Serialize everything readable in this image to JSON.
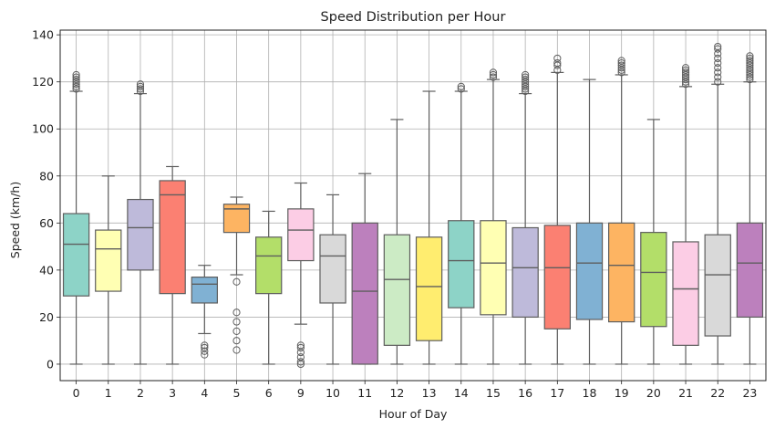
{
  "chart_data": {
    "type": "box",
    "title": "Speed Distribution per Hour",
    "xlabel": "Hour of Day",
    "ylabel": "Speed (km/h)",
    "ylim": [
      -7,
      142
    ],
    "yticks": [
      0,
      20,
      40,
      60,
      80,
      100,
      120,
      140
    ],
    "grid": true,
    "categories": [
      "0",
      "1",
      "2",
      "3",
      "4",
      "5",
      "6",
      "9",
      "10",
      "11",
      "12",
      "13",
      "14",
      "15",
      "16",
      "17",
      "18",
      "19",
      "20",
      "21",
      "22",
      "23"
    ],
    "boxes": [
      {
        "category": "0",
        "whisker_low": 0,
        "q1": 29,
        "median": 51,
        "q3": 64,
        "whisker_high": 116,
        "outliers": [
          117,
          118,
          119,
          120,
          121,
          122,
          123
        ],
        "color": "#8dd3c7"
      },
      {
        "category": "1",
        "whisker_low": 0,
        "q1": 31,
        "median": 49,
        "q3": 57,
        "whisker_high": 80,
        "outliers": [],
        "color": "#ffffb3"
      },
      {
        "category": "2",
        "whisker_low": 0,
        "q1": 40,
        "median": 58,
        "q3": 70,
        "whisker_high": 115,
        "outliers": [
          116,
          117,
          118,
          119
        ],
        "color": "#bebada"
      },
      {
        "category": "3",
        "whisker_low": 0,
        "q1": 30,
        "median": 72,
        "q3": 78,
        "whisker_high": 84,
        "outliers": [],
        "color": "#fb8072"
      },
      {
        "category": "4",
        "whisker_low": 13,
        "q1": 26,
        "median": 34,
        "q3": 37,
        "whisker_high": 42,
        "outliers": [
          4,
          5.5,
          7,
          8
        ],
        "color": "#80b1d3"
      },
      {
        "category": "5",
        "whisker_low": 38,
        "q1": 56,
        "median": 66,
        "q3": 68,
        "whisker_high": 71,
        "outliers": [
          6,
          10,
          14,
          18,
          22,
          35
        ],
        "color": "#fdb462"
      },
      {
        "category": "6",
        "whisker_low": 0,
        "q1": 30,
        "median": 46,
        "q3": 54,
        "whisker_high": 65,
        "outliers": [],
        "color": "#b3de69"
      },
      {
        "category": "9",
        "whisker_low": 17,
        "q1": 44,
        "median": 57,
        "q3": 66,
        "whisker_high": 77,
        "outliers": [
          0,
          1,
          3,
          5,
          7,
          8
        ],
        "color": "#fccde5"
      },
      {
        "category": "10",
        "whisker_low": 0,
        "q1": 26,
        "median": 46,
        "q3": 55,
        "whisker_high": 72,
        "outliers": [],
        "color": "#d9d9d9"
      },
      {
        "category": "11",
        "whisker_low": 0,
        "q1": 0,
        "median": 31,
        "q3": 60,
        "whisker_high": 81,
        "outliers": [],
        "color": "#bc80bd"
      },
      {
        "category": "12",
        "whisker_low": 0,
        "q1": 8,
        "median": 36,
        "q3": 55,
        "whisker_high": 104,
        "outliers": [],
        "color": "#ccebc5"
      },
      {
        "category": "13",
        "whisker_low": 0,
        "q1": 10,
        "median": 33,
        "q3": 54,
        "whisker_high": 116,
        "outliers": [],
        "color": "#ffed6f"
      },
      {
        "category": "14",
        "whisker_low": 0,
        "q1": 24,
        "median": 44,
        "q3": 61,
        "whisker_high": 116,
        "outliers": [
          117,
          118
        ],
        "color": "#8dd3c7"
      },
      {
        "category": "15",
        "whisker_low": 0,
        "q1": 21,
        "median": 43,
        "q3": 61,
        "whisker_high": 121,
        "outliers": [
          122,
          123,
          124
        ],
        "color": "#ffffb3"
      },
      {
        "category": "16",
        "whisker_low": 0,
        "q1": 20,
        "median": 41,
        "q3": 58,
        "whisker_high": 115,
        "outliers": [
          116,
          117,
          118,
          119,
          120,
          121,
          122,
          123
        ],
        "color": "#bebada"
      },
      {
        "category": "17",
        "whisker_low": 0,
        "q1": 15,
        "median": 41,
        "q3": 59,
        "whisker_high": 124,
        "outliers": [
          125,
          127,
          128,
          130
        ],
        "color": "#fb8072"
      },
      {
        "category": "18",
        "whisker_low": 0,
        "q1": 19,
        "median": 43,
        "q3": 60,
        "whisker_high": 121,
        "outliers": [],
        "color": "#80b1d3"
      },
      {
        "category": "19",
        "whisker_low": 0,
        "q1": 18,
        "median": 42,
        "q3": 60,
        "whisker_high": 123,
        "outliers": [
          124,
          125,
          126,
          127,
          128,
          129
        ],
        "color": "#fdb462"
      },
      {
        "category": "20",
        "whisker_low": 0,
        "q1": 16,
        "median": 39,
        "q3": 56,
        "whisker_high": 104,
        "outliers": [],
        "color": "#b3de69"
      },
      {
        "category": "21",
        "whisker_low": 0,
        "q1": 8,
        "median": 32,
        "q3": 52,
        "whisker_high": 118,
        "outliers": [
          119,
          120,
          121,
          122,
          123,
          124,
          125,
          126
        ],
        "color": "#fccde5"
      },
      {
        "category": "22",
        "whisker_low": 0,
        "q1": 12,
        "median": 38,
        "q3": 55,
        "whisker_high": 119,
        "outliers": [
          120,
          122,
          124,
          126,
          128,
          130,
          132,
          134,
          135
        ],
        "color": "#d9d9d9"
      },
      {
        "category": "23",
        "whisker_low": 0,
        "q1": 20,
        "median": 43,
        "q3": 60,
        "whisker_high": 120,
        "outliers": [
          121,
          122,
          123,
          124,
          125,
          126,
          127,
          128,
          129,
          130,
          131
        ],
        "color": "#bc80bd"
      }
    ]
  }
}
